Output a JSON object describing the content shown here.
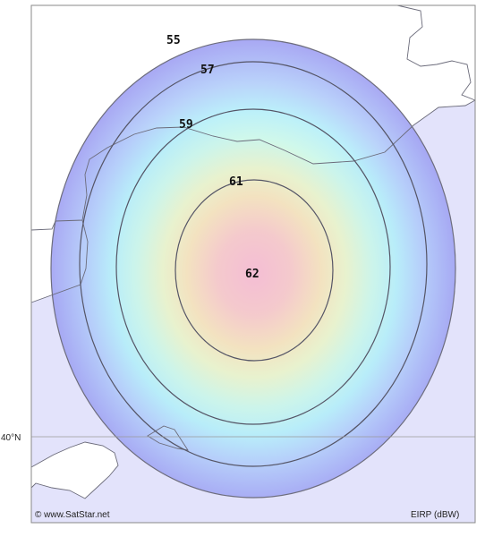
{
  "map": {
    "latitude_label": "40°N",
    "credit": "© www.SatStar.net",
    "legend_label": "EIRP (dBW)",
    "contours": [
      {
        "value": "55"
      },
      {
        "value": "57"
      },
      {
        "value": "59"
      },
      {
        "value": "61"
      },
      {
        "value": "62"
      }
    ],
    "colors": {
      "sea": "#e3e3fb",
      "land": "#ffffff",
      "coast": "#6b6b7a",
      "frame": "#8a8a8a",
      "contour_line": "#555566"
    }
  }
}
